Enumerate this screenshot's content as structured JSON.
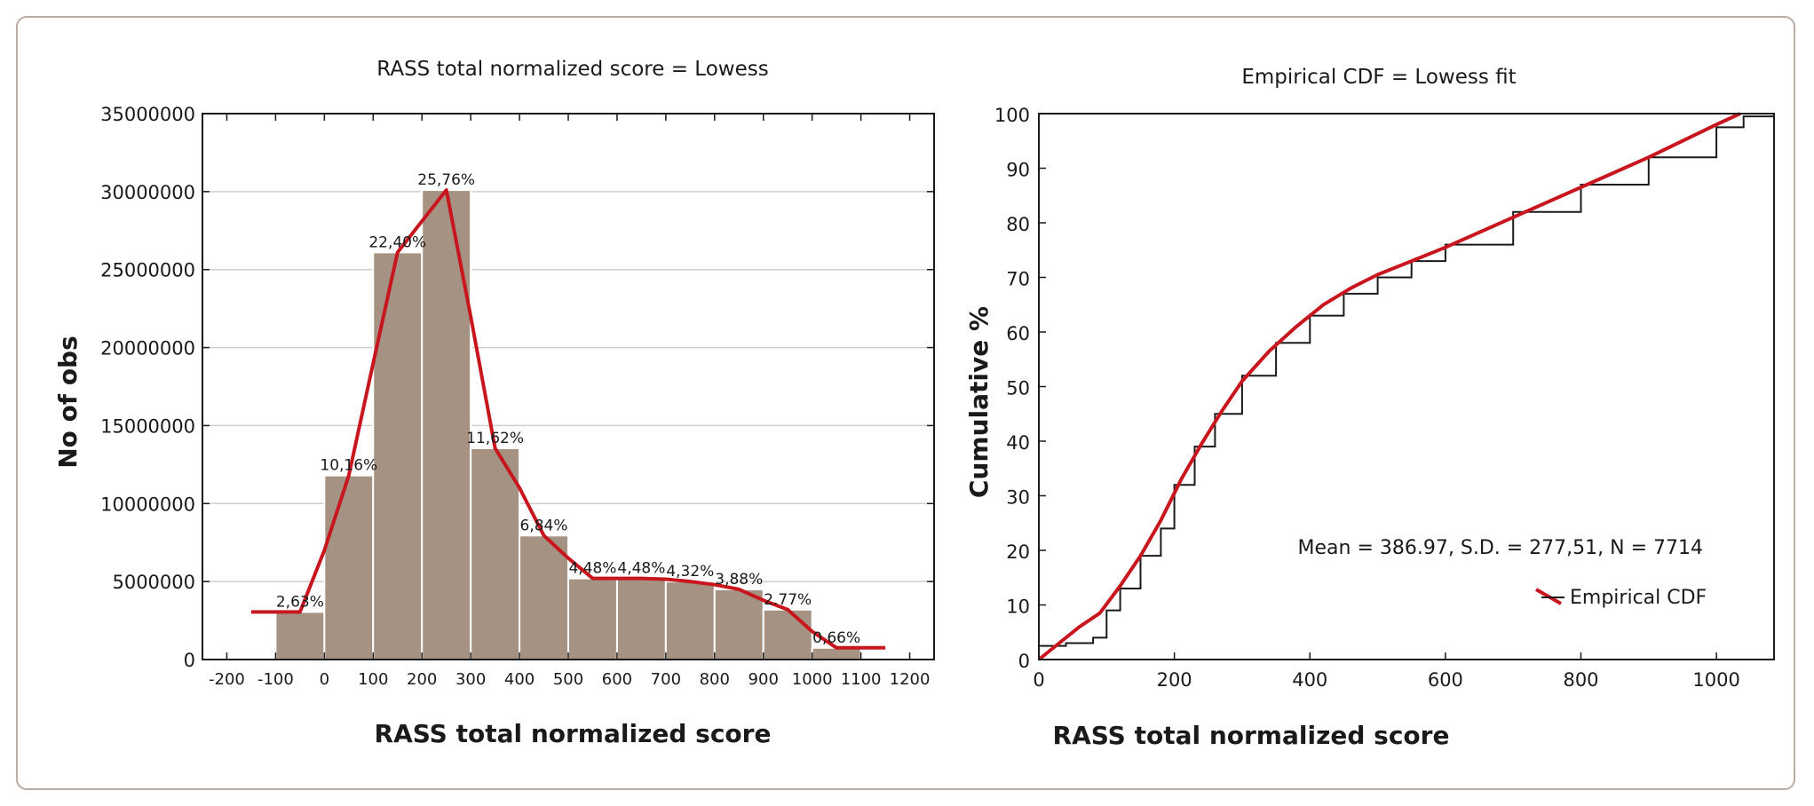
{
  "chart_data": [
    {
      "type": "bar",
      "title": "RASS total normalized score = Lowess",
      "xlabel": "RASS total normalized score",
      "ylabel": "No of obs",
      "xlim": [
        -250,
        1250
      ],
      "ylim": [
        0,
        35000000
      ],
      "x_ticks": [
        "-200",
        "-100",
        "0",
        "100",
        "200",
        "300",
        "400",
        "500",
        "600",
        "700",
        "800",
        "900",
        "1000",
        "1100",
        "1200"
      ],
      "y_ticks": [
        "0",
        "5000000",
        "10000000",
        "15000000",
        "20000000",
        "25000000",
        "30000000",
        "35000000"
      ],
      "grid": true,
      "bar_color": "#a69282",
      "line_color": "#c8161e",
      "bins": [
        {
          "from": -100,
          "to": 0,
          "value": 3050000,
          "label": "2,63%"
        },
        {
          "from": 0,
          "to": 100,
          "value": 11800000,
          "label": "10,16%"
        },
        {
          "from": 100,
          "to": 200,
          "value": 26100000,
          "label": "22,40%"
        },
        {
          "from": 200,
          "to": 300,
          "value": 30100000,
          "label": "25,76%"
        },
        {
          "from": 300,
          "to": 400,
          "value": 13550000,
          "label": "11,62%"
        },
        {
          "from": 400,
          "to": 500,
          "value": 7950000,
          "label": "6,84%"
        },
        {
          "from": 500,
          "to": 600,
          "value": 5200000,
          "label": "4,48%"
        },
        {
          "from": 600,
          "to": 700,
          "value": 5200000,
          "label": "4,48%"
        },
        {
          "from": 700,
          "to": 800,
          "value": 5000000,
          "label": "4,32%"
        },
        {
          "from": 800,
          "to": 900,
          "value": 4500000,
          "label": "3,88%"
        },
        {
          "from": 900,
          "to": 1000,
          "value": 3200000,
          "label": "2.77%"
        },
        {
          "from": 1000,
          "to": 1100,
          "value": 750000,
          "label": "0,66%"
        }
      ],
      "lowess": {
        "x": [
          -150,
          -50,
          0,
          50,
          100,
          150,
          200,
          250,
          300,
          350,
          400,
          450,
          500,
          550,
          600,
          650,
          700,
          750,
          800,
          850,
          900,
          950,
          1000,
          1050,
          1100,
          1150
        ],
        "y": [
          3050000,
          3050000,
          7000000,
          11800000,
          19000000,
          26100000,
          28100000,
          30100000,
          22000000,
          13550000,
          11000000,
          7950000,
          6500000,
          5200000,
          5200000,
          5200000,
          5150000,
          5000000,
          4800000,
          4500000,
          3800000,
          3200000,
          1800000,
          750000,
          750000,
          750000
        ]
      }
    },
    {
      "type": "line",
      "title": "Empirical CDF = Lowess fit",
      "xlabel": "RASS total normalized score",
      "ylabel": "Cumulative %",
      "xlim": [
        0,
        1085
      ],
      "ylim": [
        0,
        100
      ],
      "x_ticks": [
        "0",
        "200",
        "400",
        "600",
        "800",
        "1000"
      ],
      "y_ticks": [
        "0",
        "10",
        "20",
        "30",
        "40",
        "50",
        "60",
        "70",
        "80",
        "90",
        "100"
      ],
      "grid": false,
      "annotation": "Mean = 386.97, S.D. = 277,51, N = 7714",
      "legend": {
        "position": "lower-right",
        "entries": [
          "Empirical CDF"
        ]
      },
      "line_color": "#c8161e",
      "step_color": "#1a1a1a",
      "series": [
        {
          "name": "Empirical CDF",
          "x": [
            0,
            40,
            80,
            100,
            120,
            150,
            180,
            200,
            230,
            260,
            300,
            350,
            400,
            450,
            500,
            550,
            600,
            700,
            800,
            900,
            1000,
            1040,
            1085
          ],
          "y": [
            2.5,
            3,
            4,
            9,
            13,
            19,
            24,
            32,
            39,
            45,
            52,
            58,
            63,
            67,
            70,
            73,
            76,
            82,
            87,
            92,
            97.5,
            99.5,
            100
          ]
        },
        {
          "name": "Lowess fit",
          "x": [
            0,
            30,
            60,
            90,
            120,
            150,
            180,
            210,
            240,
            270,
            300,
            340,
            380,
            420,
            460,
            500,
            550,
            600,
            700,
            800,
            900,
            1000,
            1035
          ],
          "y": [
            0,
            3,
            6,
            8.5,
            13.5,
            19,
            25.5,
            33,
            39.5,
            45.5,
            51,
            56.5,
            61,
            65,
            68,
            70.5,
            73,
            75.5,
            81,
            86.5,
            92,
            98,
            100
          ]
        }
      ]
    }
  ]
}
